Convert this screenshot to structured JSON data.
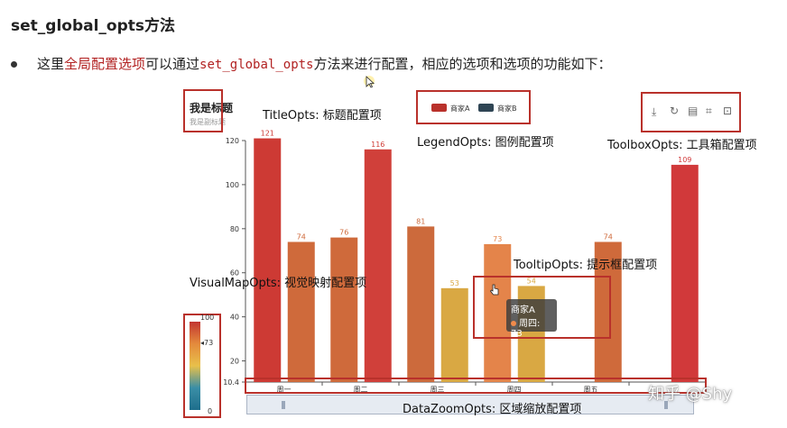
{
  "heading": "set_global_opts方法",
  "bullet": {
    "part1": "这里",
    "highlight1": "全局配置选项",
    "part2": "可以通过",
    "code": "set_global_opts",
    "part3": "方法来进行配置，相应的选项和选项的功能如下："
  },
  "figure": {
    "mini_title": "我是标题",
    "mini_subtitle": "我是副标题",
    "legend": [
      {
        "label": "商家A",
        "color": "#b9312b"
      },
      {
        "label": "商家B",
        "color": "#2f4554"
      }
    ],
    "annotations": {
      "title_opts": "TitleOpts: 标题配置项",
      "legend_opts": "LegendOpts: 图例配置项",
      "toolbox_opts": "ToolboxOpts: 工具箱配置项",
      "tooltip_opts": "TooltipOpts: 提示框配置项",
      "visualmap_opts": "VisualMapOpts: 视觉映射配置项",
      "datazoom_opts": "DataZoomOpts: 区域缩放配置项"
    },
    "toolbox_icons": [
      "download-icon",
      "refresh-icon",
      "data-view-icon",
      "crop-icon",
      "crop-reset-icon"
    ],
    "tooltip": {
      "series": "商家A",
      "line": "周四: 73"
    },
    "visualmap": {
      "max": "100",
      "min": "0",
      "pointer": "73"
    },
    "watermark": "知乎 @Shy",
    "colors": {
      "accent_red": "#b22222",
      "box_red": "#b9312b"
    }
  },
  "chart_data": {
    "type": "bar",
    "categories": [
      "周一",
      "周二",
      "周三",
      "周四",
      "周五",
      ""
    ],
    "series": [
      {
        "name": "商家A",
        "values": [
          121,
          76,
          81,
          73,
          74,
          109
        ]
      },
      {
        "name": "商家B",
        "values": [
          74,
          116,
          53,
          54,
          null,
          null
        ]
      }
    ],
    "y_ticks": [
      "10.4",
      "20",
      "40",
      "60",
      "80",
      "100",
      "120"
    ],
    "ylim": [
      10.4,
      120
    ],
    "bar_colors": {
      "121": "#cd3a34",
      "74": "#cf6a3b",
      "76": "#cf6a3b",
      "116": "#d0403a",
      "81": "#cc6a3c",
      "53": "#d9a843",
      "73": "#e4844a",
      "54": "#d9a843",
      "109": "#d1393a"
    }
  }
}
